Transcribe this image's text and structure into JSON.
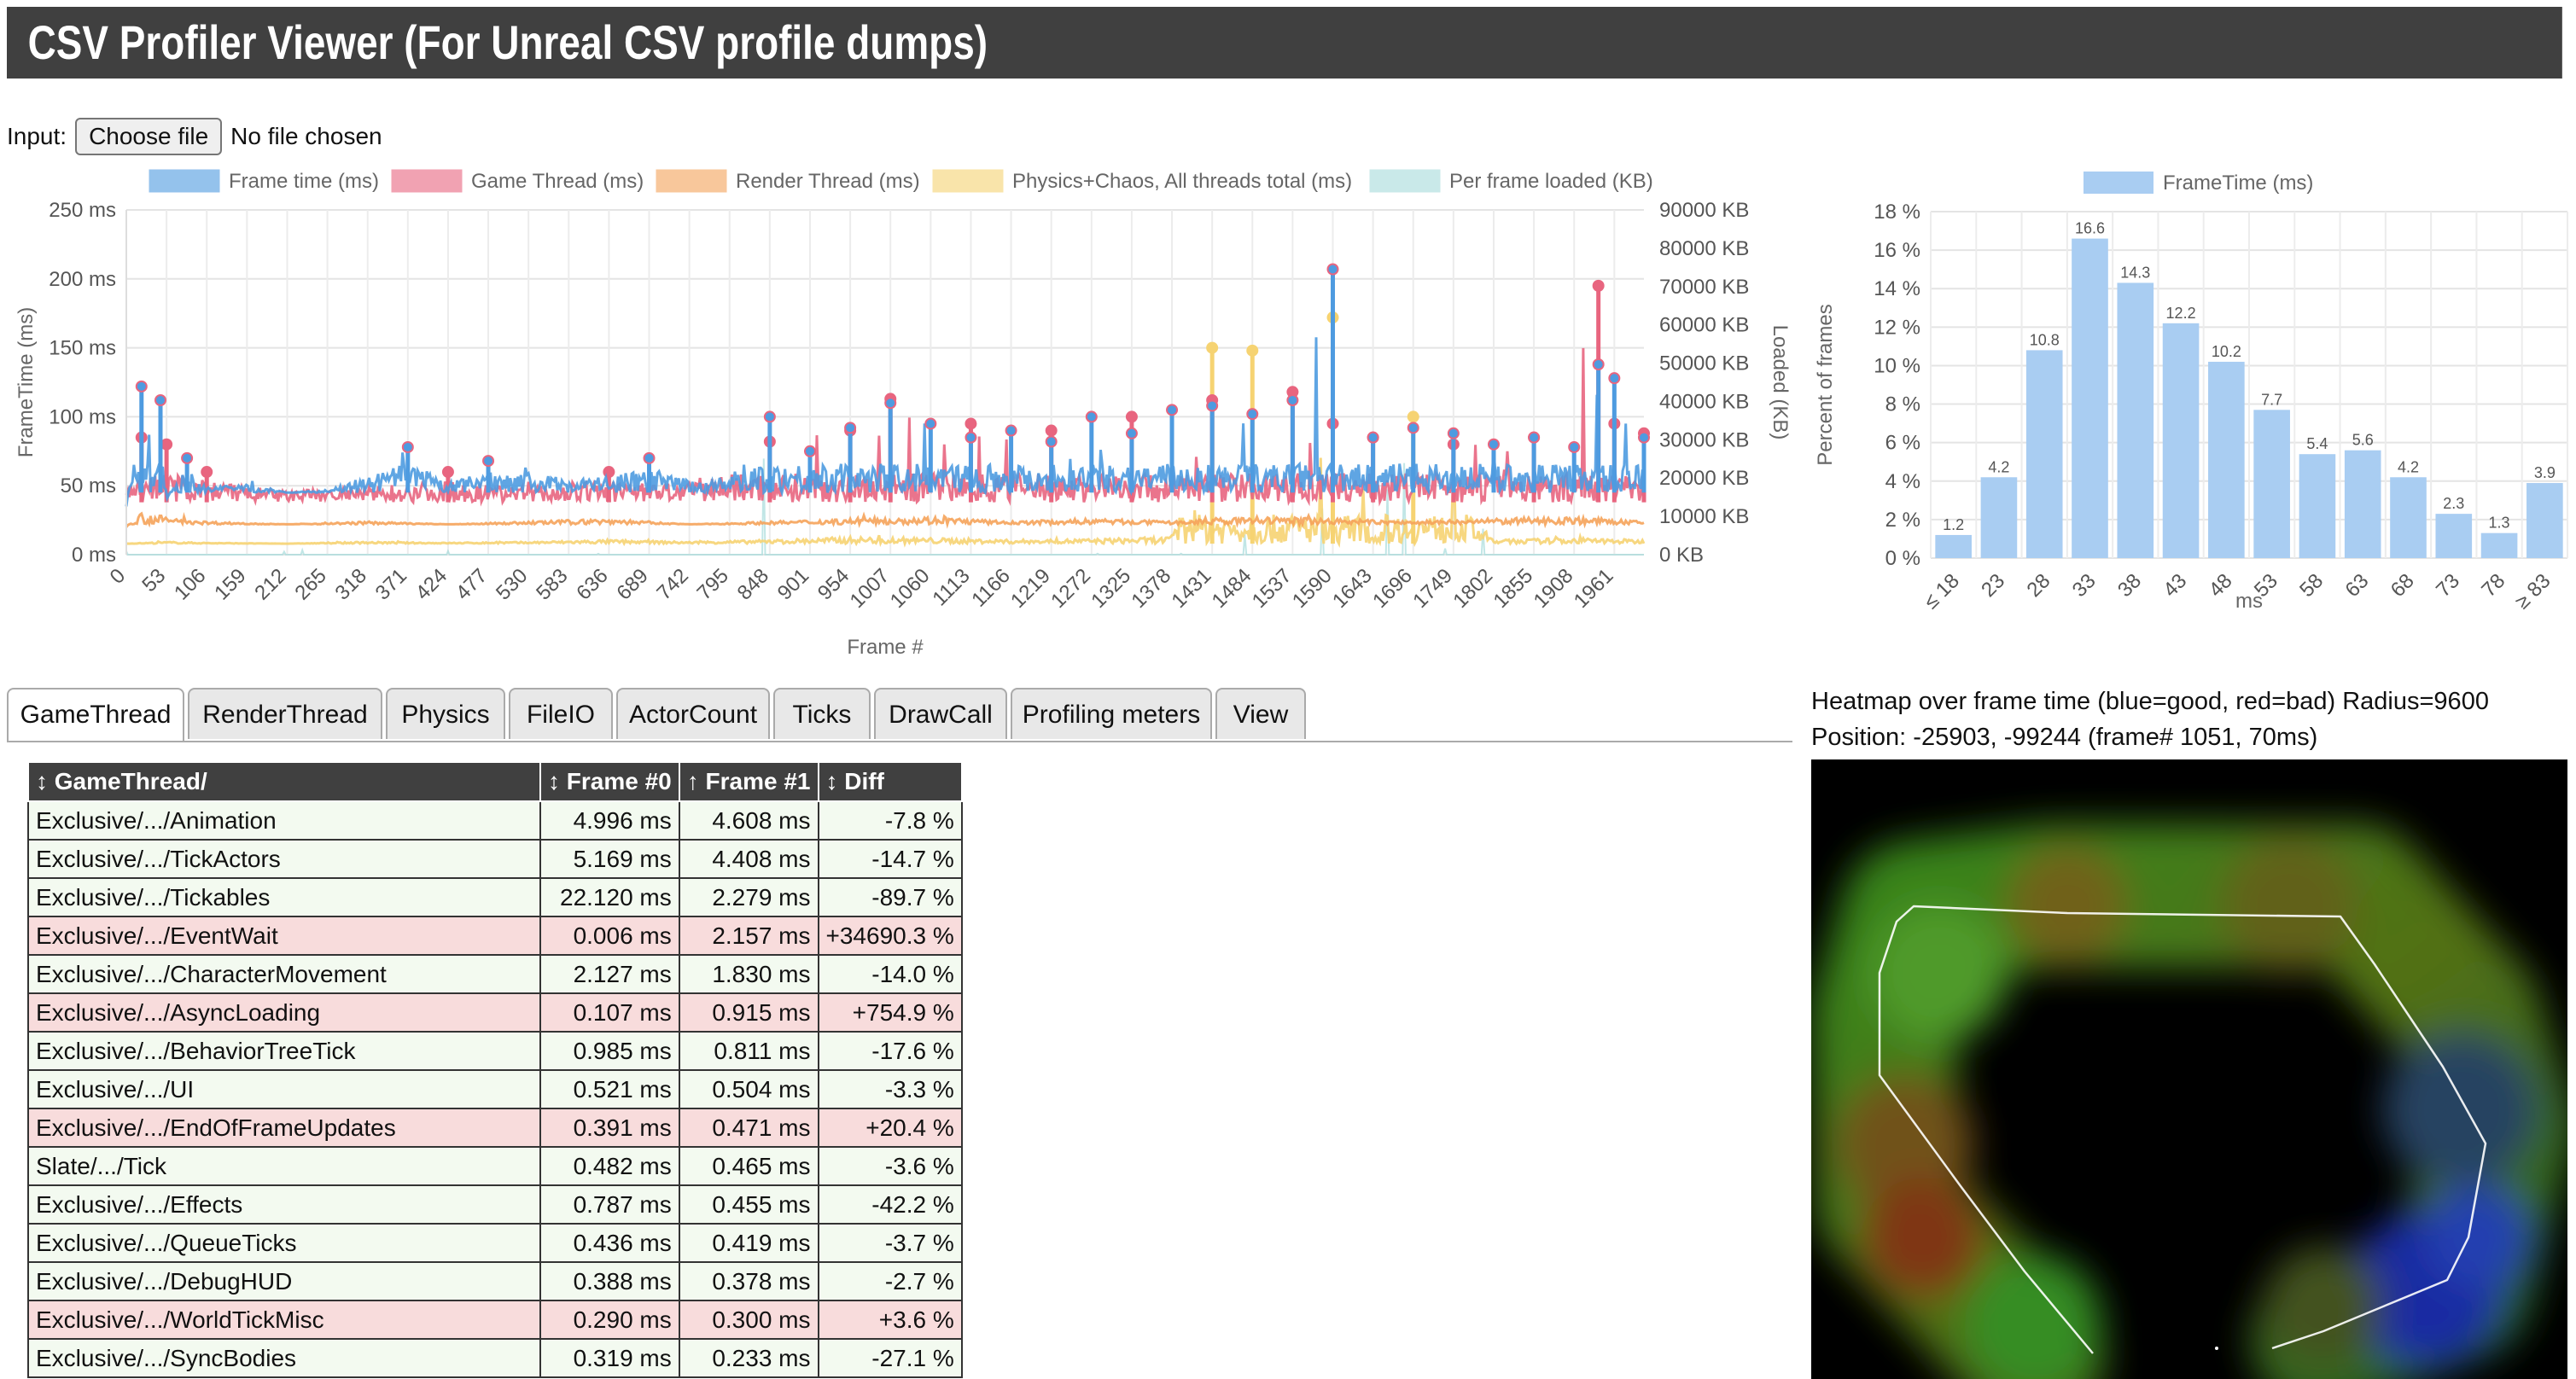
{
  "app": {
    "title": "CSV Profiler Viewer (For Unreal CSV profile dumps)"
  },
  "input": {
    "label": "Input:",
    "button": "Choose file",
    "status": "No file chosen"
  },
  "colors": {
    "frame": "#4e9be0",
    "game": "#e8657f",
    "render": "#f5a35a",
    "physics": "#f6d372",
    "loaded": "#a6dcdc",
    "hist": "#a9cdf2"
  },
  "chart_data": [
    {
      "type": "line",
      "title": "",
      "xlabel": "Frame #",
      "ylabel": "FrameTime (ms)",
      "y2label": "Loaded (KB)",
      "ylim": [
        0,
        250
      ],
      "y2lim": [
        0,
        90000
      ],
      "yticks": [
        "250 ms",
        "200 ms",
        "150 ms",
        "100 ms",
        "50 ms",
        "0 ms"
      ],
      "y2ticks": [
        "90000 KB",
        "80000 KB",
        "70000 KB",
        "60000 KB",
        "50000 KB",
        "40000 KB",
        "30000 KB",
        "20000 KB",
        "10000 KB",
        "0 KB"
      ],
      "xticks": [
        "0",
        "53",
        "106",
        "159",
        "212",
        "265",
        "318",
        "371",
        "424",
        "477",
        "530",
        "583",
        "636",
        "689",
        "742",
        "795",
        "848",
        "901",
        "954",
        "1007",
        "1060",
        "1113",
        "1166",
        "1219",
        "1272",
        "1325",
        "1378",
        "1431",
        "1484",
        "1537",
        "1590",
        "1643",
        "1696",
        "1749",
        "1802",
        "1855",
        "1908",
        "1961"
      ],
      "legend": [
        "Frame time (ms)",
        "Game Thread (ms)",
        "Render Thread (ms)",
        "Physics+Chaos, All threads total (ms)",
        "Per frame loaded (KB)"
      ],
      "legend_position": "top",
      "series": [
        {
          "name": "Frame time (ms)",
          "frames": [
            0,
            20,
            45,
            53,
            80,
            106,
            159,
            212,
            265,
            318,
            371,
            424,
            477,
            530,
            583,
            636,
            689,
            742,
            795,
            848,
            901,
            954,
            1007,
            1060,
            1113,
            1166,
            1219,
            1272,
            1325,
            1378,
            1431,
            1484,
            1537,
            1590,
            1643,
            1696,
            1749,
            1802,
            1855,
            1908,
            1940,
            1961,
            2000
          ],
          "values": [
            35,
            122,
            112,
            40,
            70,
            50,
            55,
            45,
            48,
            60,
            78,
            55,
            68,
            65,
            60,
            62,
            70,
            58,
            62,
            100,
            75,
            92,
            110,
            95,
            85,
            90,
            82,
            100,
            88,
            105,
            108,
            102,
            112,
            207,
            85,
            92,
            88,
            80,
            85,
            78,
            138,
            128,
            85
          ]
        },
        {
          "name": "Game Thread (ms)",
          "frames": [
            0,
            20,
            53,
            106,
            212,
            318,
            424,
            530,
            636,
            742,
            848,
            954,
            1007,
            1113,
            1219,
            1325,
            1431,
            1537,
            1590,
            1643,
            1749,
            1855,
            1940,
            1961,
            2000
          ],
          "values": [
            50,
            85,
            80,
            60,
            50,
            55,
            60,
            55,
            60,
            58,
            82,
            90,
            113,
            95,
            90,
            100,
            112,
            118,
            95,
            85,
            80,
            85,
            195,
            95,
            88
          ]
        },
        {
          "name": "Render Thread (ms)",
          "frames": [
            0,
            20,
            53,
            106,
            212,
            318,
            424,
            530,
            636,
            742,
            848,
            954,
            1060,
            1166,
            1272,
            1378,
            1484,
            1590,
            1696,
            1802,
            1908,
            2000
          ],
          "values": [
            20,
            35,
            30,
            25,
            22,
            25,
            22,
            25,
            28,
            22,
            25,
            28,
            30,
            25,
            28,
            25,
            30,
            28,
            25,
            28,
            30,
            25
          ]
        },
        {
          "name": "Physics+Chaos, All threads total (ms)",
          "frames": [
            0,
            53,
            106,
            212,
            318,
            424,
            530,
            636,
            742,
            848,
            954,
            1060,
            1166,
            1272,
            1378,
            1431,
            1484,
            1590,
            1643,
            1696,
            1802,
            1908,
            2000
          ],
          "values": [
            8,
            10,
            9,
            8,
            10,
            9,
            10,
            12,
            10,
            12,
            15,
            14,
            12,
            13,
            15,
            150,
            148,
            172,
            14,
            100,
            12,
            14,
            12
          ]
        },
        {
          "name": "Per frame loaded (KB)",
          "frames": [
            0,
            795,
            848,
            954,
            1007,
            1060,
            1431,
            1590,
            2000
          ],
          "values": [
            1000,
            2000,
            35000,
            4000,
            45000,
            3000,
            2000,
            60000,
            1000
          ]
        }
      ]
    },
    {
      "type": "bar",
      "title": "",
      "xlabel": "ms",
      "ylabel": "Percent of frames",
      "ylim": [
        0,
        18
      ],
      "yticks": [
        "18 %",
        "16 %",
        "14 %",
        "12 %",
        "10 %",
        "8 %",
        "6 %",
        "4 %",
        "2 %",
        "0 %"
      ],
      "legend": [
        "FrameTime (ms)"
      ],
      "legend_position": "top",
      "categories": [
        "≤ 18",
        "23",
        "28",
        "33",
        "38",
        "43",
        "48",
        "53",
        "58",
        "63",
        "68",
        "73",
        "78",
        "≥ 83"
      ],
      "values": [
        1.2,
        4.2,
        10.8,
        16.6,
        14.3,
        12.2,
        10.2,
        7.7,
        5.4,
        5.6,
        4.2,
        2.3,
        1.3,
        3.9
      ],
      "value_labels": [
        "1.2",
        "4.2",
        "10.8",
        "16.6",
        "14.3",
        "12.2",
        "10.2",
        "7.7",
        "5.4",
        "5.6",
        "4.2",
        "2.3",
        "1.3",
        "3.9"
      ]
    }
  ],
  "tabs": [
    "GameThread",
    "RenderThread",
    "Physics",
    "FileIO",
    "ActorCount",
    "Ticks",
    "DrawCall",
    "Profiling meters",
    "View"
  ],
  "table": {
    "headers": [
      "↕ GameThread/",
      "↕ Frame #0",
      "↑ Frame #1",
      "↕ Diff"
    ],
    "rows": [
      {
        "name": "Exclusive/.../Animation",
        "f0": "4.996 ms",
        "f1": "4.608 ms",
        "diff": "-7.8 %",
        "state": "good"
      },
      {
        "name": "Exclusive/.../TickActors",
        "f0": "5.169 ms",
        "f1": "4.408 ms",
        "diff": "-14.7 %",
        "state": "good"
      },
      {
        "name": "Exclusive/.../Tickables",
        "f0": "22.120 ms",
        "f1": "2.279 ms",
        "diff": "-89.7 %",
        "state": "good"
      },
      {
        "name": "Exclusive/.../EventWait",
        "f0": "0.006 ms",
        "f1": "2.157 ms",
        "diff": "+34690.3 %",
        "state": "bad"
      },
      {
        "name": "Exclusive/.../CharacterMovement",
        "f0": "2.127 ms",
        "f1": "1.830 ms",
        "diff": "-14.0 %",
        "state": "good"
      },
      {
        "name": "Exclusive/.../AsyncLoading",
        "f0": "0.107 ms",
        "f1": "0.915 ms",
        "diff": "+754.9 %",
        "state": "bad"
      },
      {
        "name": "Exclusive/.../BehaviorTreeTick",
        "f0": "0.985 ms",
        "f1": "0.811 ms",
        "diff": "-17.6 %",
        "state": "good"
      },
      {
        "name": "Exclusive/.../UI",
        "f0": "0.521 ms",
        "f1": "0.504 ms",
        "diff": "-3.3 %",
        "state": "good"
      },
      {
        "name": "Exclusive/.../EndOfFrameUpdates",
        "f0": "0.391 ms",
        "f1": "0.471 ms",
        "diff": "+20.4 %",
        "state": "bad"
      },
      {
        "name": "Slate/.../Tick",
        "f0": "0.482 ms",
        "f1": "0.465 ms",
        "diff": "-3.6 %",
        "state": "good"
      },
      {
        "name": "Exclusive/.../Effects",
        "f0": "0.787 ms",
        "f1": "0.455 ms",
        "diff": "-42.2 %",
        "state": "good"
      },
      {
        "name": "Exclusive/.../QueueTicks",
        "f0": "0.436 ms",
        "f1": "0.419 ms",
        "diff": "-3.7 %",
        "state": "good"
      },
      {
        "name": "Exclusive/.../DebugHUD",
        "f0": "0.388 ms",
        "f1": "0.378 ms",
        "diff": "-2.7 %",
        "state": "good"
      },
      {
        "name": "Exclusive/.../WorldTickMisc",
        "f0": "0.290 ms",
        "f1": "0.300 ms",
        "diff": "+3.6 %",
        "state": "bad"
      },
      {
        "name": "Exclusive/.../SyncBodies",
        "f0": "0.319 ms",
        "f1": "0.233 ms",
        "diff": "-27.1 %",
        "state": "good"
      }
    ]
  },
  "heatmap": {
    "caption": "Heatmap over frame time (blue=good, red=bad) Radius=9600",
    "position": "Position: -25903, -99244 (frame# 1051, 70ms)"
  }
}
